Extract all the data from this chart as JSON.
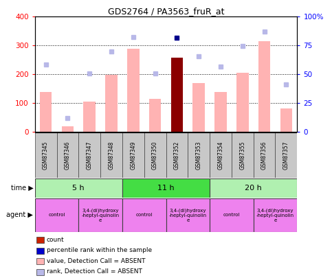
{
  "title": "GDS2764 / PA3563_fruR_at",
  "samples": [
    "GSM87345",
    "GSM87346",
    "GSM87347",
    "GSM87348",
    "GSM87349",
    "GSM87350",
    "GSM87352",
    "GSM87353",
    "GSM87354",
    "GSM87355",
    "GSM87356",
    "GSM87357"
  ],
  "bar_values": [
    140,
    20,
    105,
    198,
    288,
    115,
    258,
    170,
    138,
    205,
    315,
    82
  ],
  "bar_absent": [
    true,
    true,
    true,
    true,
    true,
    true,
    false,
    true,
    true,
    true,
    true,
    true
  ],
  "rank_values": [
    58.75,
    12.0,
    50.5,
    70.0,
    82.5,
    50.5,
    82.0,
    65.5,
    57.0,
    74.5,
    87.0,
    41.25
  ],
  "rank_absent": [
    true,
    true,
    true,
    true,
    true,
    true,
    false,
    true,
    true,
    true,
    true,
    true
  ],
  "bar_color_absent": "#ffb3b3",
  "bar_color_present": "#8b0000",
  "rank_color_absent": "#b8b8e8",
  "rank_color_present": "#00008b",
  "ylim_left": [
    0,
    400
  ],
  "ylim_right": [
    0,
    100
  ],
  "yticks_left": [
    0,
    100,
    200,
    300,
    400
  ],
  "yticks_right": [
    0,
    25,
    50,
    75,
    100
  ],
  "ytick_labels_right": [
    "0",
    "25",
    "50",
    "75",
    "100%"
  ],
  "time_groups": [
    {
      "label": "5 h",
      "start": 0,
      "end": 4,
      "color": "#b0f0b0"
    },
    {
      "label": "11 h",
      "start": 4,
      "end": 8,
      "color": "#44dd44"
    },
    {
      "label": "20 h",
      "start": 8,
      "end": 12,
      "color": "#b0f0b0"
    }
  ],
  "agent_groups": [
    {
      "label": "control",
      "start": 0,
      "end": 2,
      "color": "#ee82ee"
    },
    {
      "label": "3,4-(di)hydroxy\n-heptyl-quinolin\ne",
      "start": 2,
      "end": 4,
      "color": "#ee82ee"
    },
    {
      "label": "control",
      "start": 4,
      "end": 6,
      "color": "#ee82ee"
    },
    {
      "label": "3,4-(di)hydroxy\n-heptyl-quinolin\ne",
      "start": 6,
      "end": 8,
      "color": "#ee82ee"
    },
    {
      "label": "control",
      "start": 8,
      "end": 10,
      "color": "#ee82ee"
    },
    {
      "label": "3,4-(di)hydroxy\n-heptyl-quinolin\ne",
      "start": 10,
      "end": 12,
      "color": "#ee82ee"
    }
  ],
  "legend_items": [
    {
      "label": "count",
      "color": "#cc2200"
    },
    {
      "label": "percentile rank within the sample",
      "color": "#0000cc"
    },
    {
      "label": "value, Detection Call = ABSENT",
      "color": "#ffb3b3"
    },
    {
      "label": "rank, Detection Call = ABSENT",
      "color": "#b8b8e8"
    }
  ],
  "bg_color": "#ffffff",
  "plot_area_bg": "#ffffff"
}
